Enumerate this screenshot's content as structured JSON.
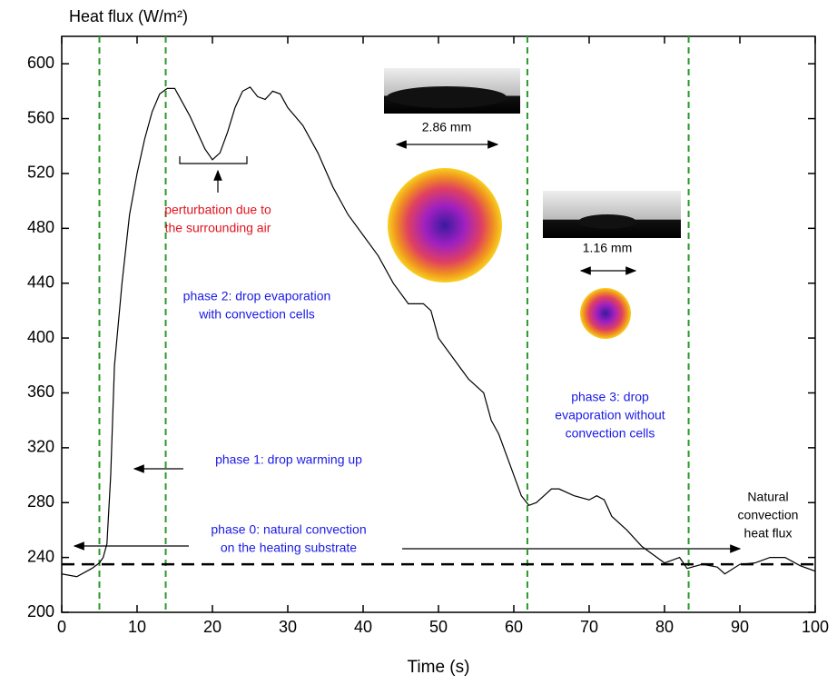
{
  "chart_data": {
    "type": "line",
    "ylabel": "Heat flux (W/m²)",
    "xlabel": "Time (s)",
    "x": [
      0,
      2,
      4,
      5,
      5.5,
      6,
      6.5,
      7,
      8,
      9,
      10,
      11,
      12,
      13,
      14,
      15,
      16,
      17,
      18,
      19,
      20,
      21,
      22,
      23,
      24,
      25,
      26,
      27,
      28,
      29,
      30,
      32,
      34,
      36,
      38,
      40,
      42,
      44,
      46,
      48,
      49,
      50,
      52,
      54,
      56,
      57,
      58,
      60,
      61,
      62,
      63,
      64,
      65,
      66,
      68,
      70,
      71,
      72,
      73,
      75,
      77,
      79,
      80,
      82,
      83,
      85,
      87,
      88,
      90,
      92,
      94,
      96,
      98,
      100
    ],
    "values": [
      228,
      226,
      232,
      236,
      240,
      250,
      300,
      380,
      440,
      490,
      520,
      545,
      565,
      578,
      582,
      582,
      572,
      562,
      550,
      538,
      530,
      535,
      550,
      568,
      580,
      583,
      576,
      574,
      580,
      578,
      568,
      555,
      535,
      510,
      490,
      475,
      460,
      440,
      425,
      425,
      420,
      400,
      385,
      370,
      360,
      340,
      330,
      300,
      285,
      278,
      280,
      285,
      290,
      290,
      285,
      282,
      285,
      282,
      270,
      260,
      248,
      240,
      236,
      240,
      232,
      235,
      233,
      228,
      235,
      236,
      240,
      240,
      234,
      230
    ],
    "color": "#000000",
    "xlim": [
      0,
      100
    ],
    "xticks": [
      0,
      10,
      20,
      30,
      40,
      50,
      60,
      70,
      80,
      90,
      100
    ],
    "ylim": [
      200,
      620
    ],
    "yticks": [
      200,
      240,
      280,
      320,
      360,
      400,
      440,
      480,
      520,
      560,
      600
    ],
    "vlines": [
      5,
      13.8,
      61.8,
      83.2
    ],
    "vline_color": "#2a9a2a",
    "hline": 235,
    "annotations": [
      {
        "lines": [
          "perturbation due to",
          "the surrounding air"
        ],
        "color": "#e0141e"
      },
      {
        "lines": [
          "phase 2: drop evaporation",
          "with convection cells"
        ],
        "color": "#1a1ae6"
      },
      {
        "lines": [
          "phase 1: drop warming up"
        ],
        "color": "#1a1ae6"
      },
      {
        "lines": [
          "phase 0: natural convection",
          "on the heating substrate"
        ],
        "color": "#1a1ae6"
      },
      {
        "lines": [
          "phase 3: drop",
          "evaporation without",
          "convection cells"
        ],
        "color": "#1a1ae6"
      },
      {
        "lines": [
          "Natural",
          "convection",
          "heat flux"
        ],
        "color": "#000000"
      },
      {
        "lines": [
          "2.86 mm"
        ],
        "color": "#000000"
      },
      {
        "lines": [
          "1.16 mm"
        ],
        "color": "#000000"
      }
    ]
  }
}
